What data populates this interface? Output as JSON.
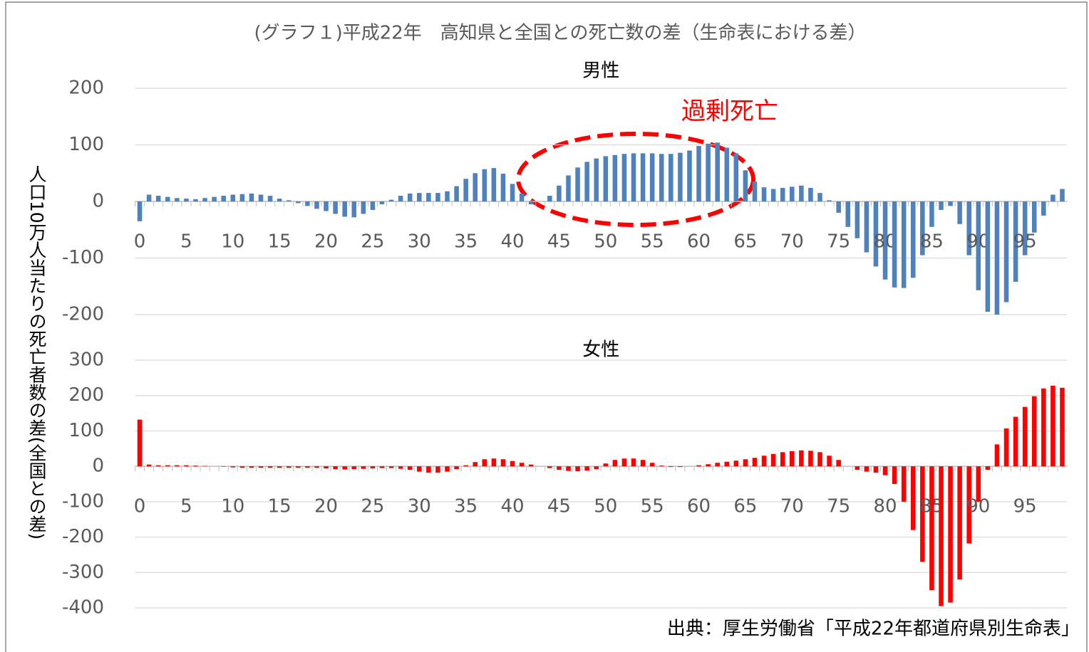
{
  "title": "(グラフ１)平成22年　高知県と全国との死亡数の差（生命表における差）",
  "ylabel": "人口10万人当たりの死亡者数の差(全国との差)",
  "source": "出典：厚生労働省「平成22年都道府県別生命表」",
  "chart_data": [
    {
      "type": "bar",
      "title": "男性",
      "annotation": "過剰死亡",
      "color": "#4f81bd",
      "categories": [
        0,
        null,
        null,
        null,
        null,
        5,
        null,
        null,
        null,
        null,
        10,
        null,
        null,
        null,
        null,
        15,
        null,
        null,
        null,
        null,
        20,
        null,
        null,
        null,
        null,
        25,
        null,
        null,
        null,
        null,
        30,
        null,
        null,
        null,
        null,
        35,
        null,
        null,
        null,
        null,
        40,
        null,
        null,
        null,
        null,
        45,
        null,
        null,
        null,
        null,
        50,
        null,
        null,
        null,
        null,
        55,
        null,
        null,
        null,
        null,
        60,
        null,
        null,
        null,
        null,
        65,
        null,
        null,
        null,
        null,
        70,
        null,
        null,
        null,
        null,
        75,
        null,
        null,
        null,
        null,
        80,
        null,
        null,
        null,
        null,
        85,
        null,
        null,
        null,
        null,
        90,
        null,
        null,
        null,
        null,
        95,
        null,
        null,
        null,
        null
      ],
      "values": [
        -35,
        12,
        10,
        8,
        6,
        5,
        4,
        6,
        8,
        10,
        12,
        13,
        14,
        12,
        10,
        5,
        2,
        -3,
        -8,
        -13,
        -17,
        -22,
        -27,
        -28,
        -22,
        -15,
        -5,
        3,
        10,
        14,
        15,
        15,
        15,
        18,
        27,
        40,
        50,
        57,
        59,
        49,
        31,
        14,
        -5,
        0,
        10,
        28,
        46,
        60,
        70,
        76,
        80,
        82,
        84,
        85,
        85,
        85,
        84,
        84,
        86,
        90,
        98,
        102,
        104,
        95,
        85,
        55,
        35,
        25,
        22,
        24,
        26,
        28,
        24,
        15,
        2,
        -20,
        -45,
        -65,
        -90,
        -115,
        -138,
        -152,
        -153,
        -135,
        -95,
        -45,
        -15,
        -8,
        -40,
        -95,
        -157,
        -195,
        -200,
        -178,
        -142,
        -95,
        -55,
        -25,
        12,
        22
      ],
      "ylim": [
        -200,
        200
      ],
      "yticks": [
        -200,
        -100,
        0,
        100,
        200
      ],
      "grid": true
    },
    {
      "type": "bar",
      "title": "女性",
      "color": "#ff0000",
      "categories": [
        0,
        null,
        null,
        null,
        null,
        5,
        null,
        null,
        null,
        null,
        10,
        null,
        null,
        null,
        null,
        15,
        null,
        null,
        null,
        null,
        20,
        null,
        null,
        null,
        null,
        25,
        null,
        null,
        null,
        null,
        30,
        null,
        null,
        null,
        null,
        35,
        null,
        null,
        null,
        null,
        40,
        null,
        null,
        null,
        null,
        45,
        null,
        null,
        null,
        null,
        50,
        null,
        null,
        null,
        null,
        55,
        null,
        null,
        null,
        null,
        60,
        null,
        null,
        null,
        null,
        65,
        null,
        null,
        null,
        null,
        70,
        null,
        null,
        null,
        null,
        75,
        null,
        null,
        null,
        null,
        80,
        null,
        null,
        null,
        null,
        85,
        null,
        null,
        null,
        null,
        90,
        null,
        null,
        null,
        null,
        95,
        null,
        null,
        null,
        null
      ],
      "values": [
        132,
        5,
        3,
        3,
        3,
        3,
        2,
        1,
        0,
        -1,
        -3,
        -4,
        -4,
        -4,
        -4,
        -4,
        -4,
        -4,
        -4,
        -4,
        -6,
        -8,
        -9,
        -8,
        -7,
        -6,
        -5,
        -5,
        -7,
        -10,
        -15,
        -18,
        -18,
        -15,
        -8,
        3,
        12,
        20,
        22,
        20,
        15,
        10,
        5,
        0,
        -5,
        -10,
        -13,
        -14,
        -12,
        -8,
        8,
        18,
        22,
        22,
        18,
        10,
        2,
        -2,
        -2,
        0,
        3,
        6,
        10,
        13,
        16,
        20,
        24,
        30,
        35,
        40,
        43,
        45,
        44,
        40,
        30,
        18,
        0,
        -10,
        -15,
        -18,
        -25,
        -50,
        -100,
        -180,
        -270,
        -350,
        -395,
        -385,
        -320,
        -218,
        -100,
        -10,
        62,
        107,
        140,
        168,
        198,
        220,
        228,
        222
      ],
      "ylim": [
        -400,
        300
      ],
      "yticks": [
        -400,
        -300,
        -200,
        -100,
        0,
        100,
        200,
        300
      ],
      "grid": true
    }
  ]
}
